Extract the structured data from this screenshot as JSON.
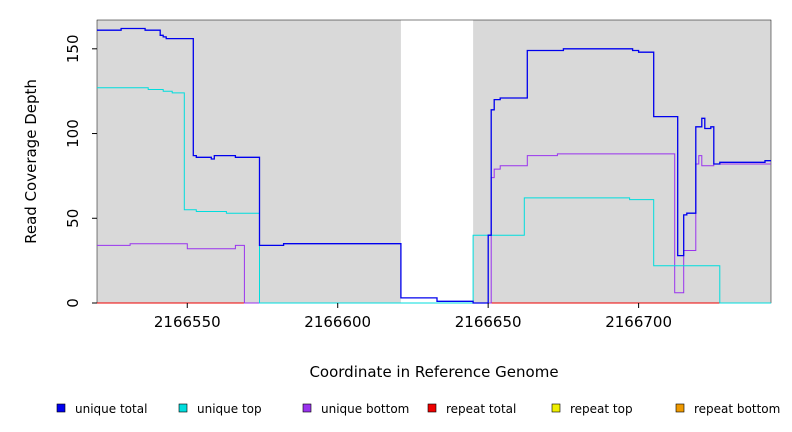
{
  "chart_data": {
    "type": "line",
    "xlabel": "Coordinate in Reference Genome",
    "ylabel": "Read Coverage Depth",
    "xlim": [
      2166520,
      2166744
    ],
    "ylim": [
      0,
      167
    ],
    "x_ticks": [
      2166550,
      2166600,
      2166650,
      2166700
    ],
    "y_ticks": [
      0,
      50,
      100,
      150
    ],
    "grid": false,
    "legend_position": "bottom",
    "shaded_regions": [
      [
        2166520,
        2166621
      ],
      [
        2166645,
        2166744
      ]
    ],
    "shade_color": "#d9d9d9",
    "series": [
      {
        "name": "unique total",
        "color": "#0000ee",
        "x": [
          2166520,
          2166528,
          2166533,
          2166536,
          2166541,
          2166542,
          2166543,
          2166552,
          2166553,
          2166554,
          2166558,
          2166559,
          2166564,
          2166566,
          2166574,
          2166582,
          2166621,
          2166623,
          2166633,
          2166645,
          2166650,
          2166651,
          2166652,
          2166654,
          2166660,
          2166663,
          2166663,
          2166675,
          2166698,
          2166700,
          2166705,
          2166706,
          2166713,
          2166715,
          2166716,
          2166719,
          2166721,
          2166722,
          2166724,
          2166725,
          2166727,
          2166734,
          2166742,
          2166744
        ],
        "y": [
          161,
          162,
          162,
          161,
          158,
          157,
          156,
          87,
          86,
          86,
          85,
          87,
          87,
          86,
          34,
          35,
          3,
          3,
          1,
          0,
          40,
          114,
          120,
          121,
          121,
          127,
          149,
          150,
          149,
          148,
          110,
          110,
          28,
          52,
          53,
          104,
          109,
          103,
          104,
          82,
          83,
          83,
          84,
          84
        ]
      },
      {
        "name": "unique top",
        "color": "#00dddd",
        "x": [
          2166520,
          2166525,
          2166537,
          2166542,
          2166545,
          2166549,
          2166553,
          2166559,
          2166563,
          2166565,
          2166574,
          2166581,
          2166621,
          2166640,
          2166644,
          2166645,
          2166646,
          2166659,
          2166662,
          2166667,
          2166668,
          2166673,
          2166697,
          2166704,
          2166705,
          2166706,
          2166727,
          2166744
        ],
        "y": [
          127,
          127,
          126,
          125,
          124,
          55,
          54,
          54,
          53,
          53,
          0,
          0,
          0,
          0,
          0,
          40,
          40,
          40,
          62,
          62,
          62,
          62,
          61,
          61,
          22,
          22,
          0,
          0
        ]
      },
      {
        "name": "unique bottom",
        "color": "#9933ee",
        "x": [
          2166520,
          2166524,
          2166531,
          2166537,
          2166550,
          2166552,
          2166557,
          2166563,
          2166566,
          2166568,
          2166569,
          2166570,
          2166575,
          2166580,
          2166585,
          2166594,
          2166621,
          2166644,
          2166646,
          2166650,
          2166651,
          2166652,
          2166654,
          2166660,
          2166663,
          2166673,
          2166698,
          2166706,
          2166712,
          2166715,
          2166719,
          2166720,
          2166721,
          2166722,
          2166724,
          2166725,
          2166727,
          2166744
        ],
        "y": [
          34,
          34,
          35,
          35,
          32,
          32,
          32,
          32,
          34,
          34,
          0,
          0,
          0,
          0,
          0,
          0,
          0,
          0,
          0,
          0,
          74,
          79,
          81,
          81,
          87,
          88,
          88,
          88,
          6,
          31,
          82,
          87,
          81,
          81,
          81,
          82,
          82,
          82
        ]
      },
      {
        "name": "repeat total",
        "color": "#ee0000",
        "x": [
          2166520,
          2166744
        ],
        "y": [
          0,
          0
        ]
      },
      {
        "name": "repeat top",
        "color": "#eeee00",
        "x": [
          2166520,
          2166744
        ],
        "y": [
          0,
          0
        ]
      },
      {
        "name": "repeat bottom",
        "color": "#ee9900",
        "x": [
          2166520,
          2166744
        ],
        "y": [
          0,
          0
        ]
      }
    ]
  }
}
